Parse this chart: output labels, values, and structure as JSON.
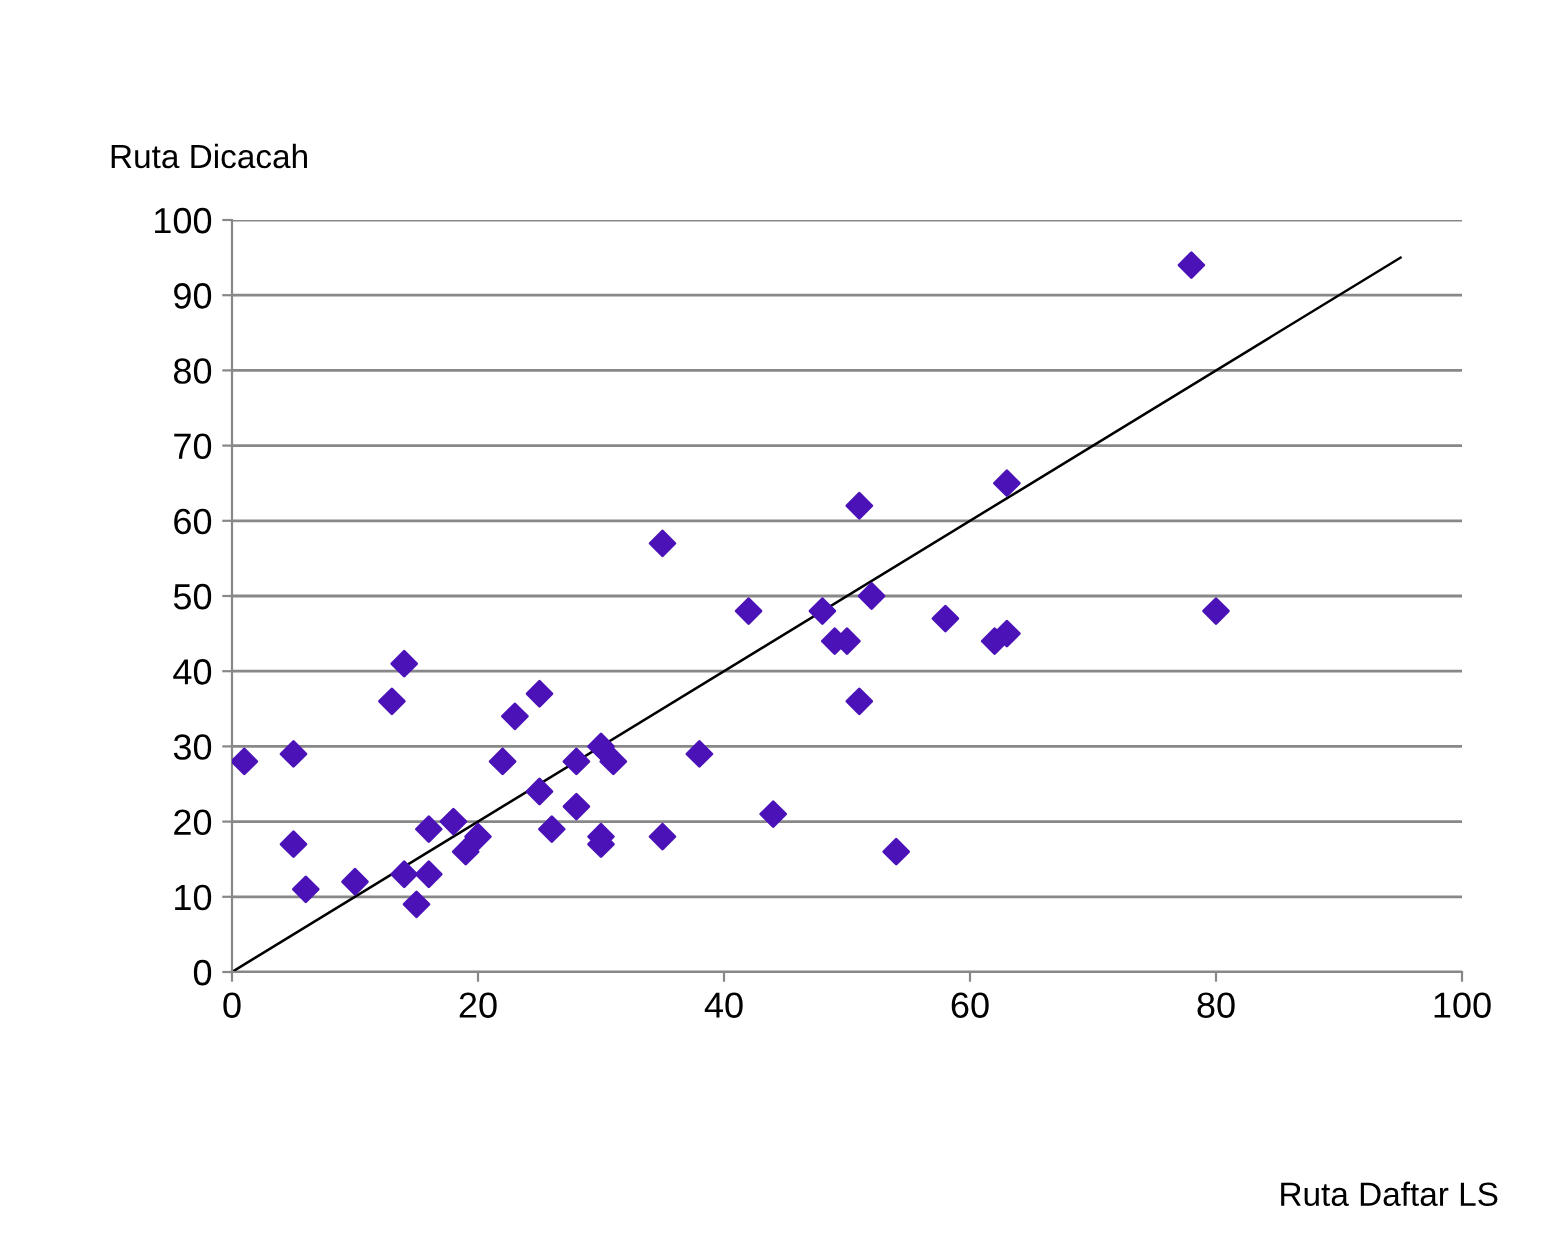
{
  "chart_data": {
    "type": "scatter",
    "xlabel": "Ruta Daftar LS",
    "ylabel": "Ruta Dicacah",
    "xlim": [
      0,
      100
    ],
    "xticks": [
      0,
      20,
      40,
      60,
      80,
      100
    ],
    "ylim": [
      0,
      100
    ],
    "yticks": [
      0,
      10,
      20,
      30,
      40,
      50,
      60,
      70,
      80,
      90,
      100
    ],
    "grid": "y",
    "legend": false,
    "series": [
      {
        "marker": "diamond",
        "color": "#4b12b8",
        "x": [
          1,
          5,
          5,
          6,
          10,
          13,
          14,
          14,
          15,
          16,
          16,
          18,
          19,
          20,
          22,
          23,
          25,
          25,
          26,
          28,
          28,
          30,
          30,
          30,
          31,
          35,
          35,
          38,
          42,
          44,
          48,
          49,
          50,
          51,
          51,
          52,
          54,
          58,
          62,
          63,
          63,
          78,
          80
        ],
        "values": [
          28,
          29,
          17,
          11,
          12,
          36,
          41,
          13,
          9,
          19,
          13,
          20,
          16,
          18,
          28,
          34,
          37,
          24,
          19,
          28,
          22,
          30,
          18,
          17,
          28,
          57,
          18,
          29,
          48,
          21,
          48,
          44,
          44,
          62,
          36,
          50,
          16,
          47,
          44,
          45,
          65,
          94,
          48
        ]
      },
      {
        "type": "line",
        "marker": "none",
        "color": "#000000",
        "x": [
          0,
          95
        ],
        "values": [
          0,
          95
        ]
      }
    ]
  }
}
